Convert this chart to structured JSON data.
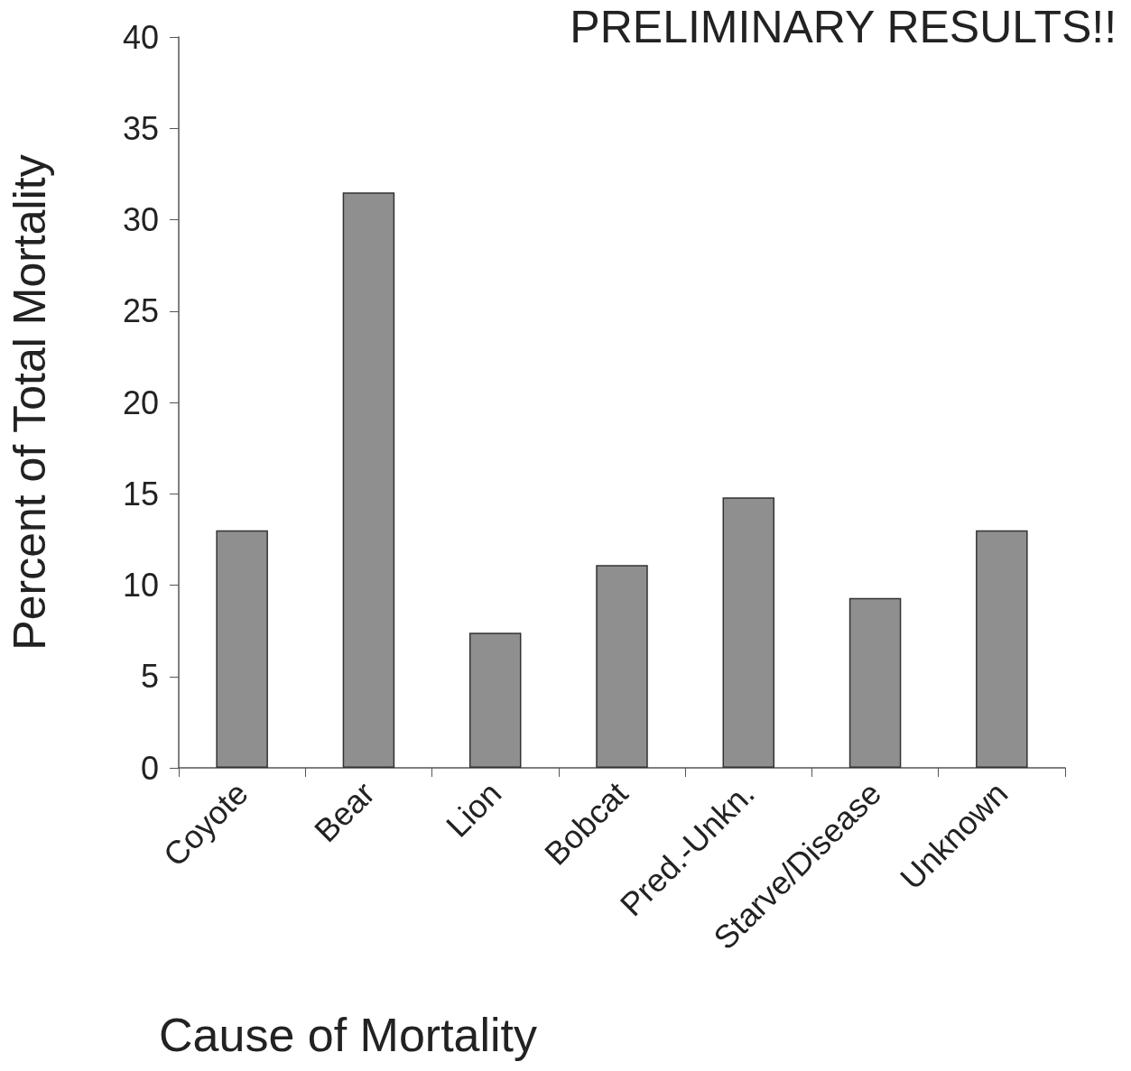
{
  "chart_data": {
    "type": "bar",
    "title": "PRELIMINARY RESULTS!!",
    "xlabel": "Cause of Mortality",
    "ylabel": "Percent of Total Mortality",
    "categories": [
      "Coyote",
      "Bear",
      "Lion",
      "Bobcat",
      "Pred.-Unkn.",
      "Starve/Disease",
      "Unknown"
    ],
    "values": [
      13.0,
      31.5,
      7.4,
      11.1,
      14.8,
      9.3,
      13.0
    ],
    "color": "#8f8f8f",
    "ylim": [
      0,
      40
    ],
    "yticks": [
      0,
      5,
      10,
      15,
      20,
      25,
      30,
      35,
      40
    ],
    "grid": false
  }
}
